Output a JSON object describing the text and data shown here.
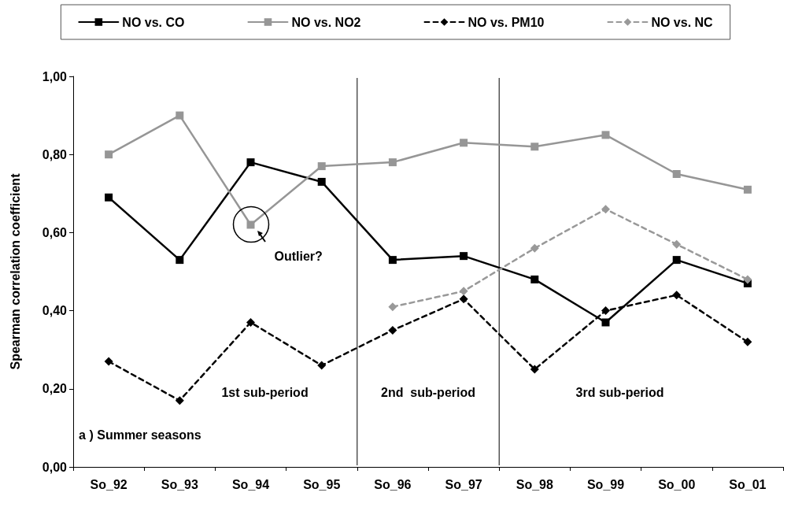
{
  "chart_data": {
    "type": "line",
    "ylabel": "Spearman correlation coefficient",
    "categories": [
      "So_92",
      "So_93",
      "So_94",
      "So_95",
      "So_96",
      "So_97",
      "So_98",
      "So_99",
      "So_00",
      "So_01"
    ],
    "series": [
      {
        "name": "NO vs. CO",
        "color": "#000000",
        "marker": "square",
        "line_style": "solid",
        "values": [
          0.69,
          0.53,
          0.78,
          0.73,
          0.53,
          0.54,
          0.48,
          0.37,
          0.53,
          0.47
        ]
      },
      {
        "name": "NO vs. NO2",
        "color": "#969696",
        "marker": "square",
        "line_style": "solid",
        "values": [
          0.8,
          0.9,
          0.62,
          0.77,
          0.78,
          0.83,
          0.82,
          0.85,
          0.75,
          0.71
        ]
      },
      {
        "name": "NO vs. PM10",
        "color": "#000000",
        "marker": "diamond",
        "line_style": "dashed",
        "values": [
          0.27,
          0.17,
          0.37,
          0.26,
          0.35,
          0.43,
          0.25,
          0.4,
          0.44,
          0.32
        ]
      },
      {
        "name": "NO vs. NC",
        "color": "#999999",
        "marker": "diamond",
        "line_style": "dashed",
        "values": [
          null,
          null,
          null,
          null,
          0.41,
          0.45,
          0.56,
          0.66,
          0.57,
          0.48
        ]
      }
    ],
    "ylim": [
      0,
      1
    ],
    "yticks": [
      {
        "value": 0,
        "label": "0,00"
      },
      {
        "value": 0.2,
        "label": "0,20"
      },
      {
        "value": 0.4,
        "label": "0,40"
      },
      {
        "value": 0.6,
        "label": "0,60"
      },
      {
        "value": 0.8,
        "label": "0,80"
      },
      {
        "value": 1,
        "label": "1,00"
      }
    ],
    "annotations": [
      {
        "text": "Outlier?",
        "x": "So_94",
        "y": 0.62
      },
      "1st sub-period",
      "2nd  sub-period",
      "3rd sub-period",
      "a ) Summer seasons"
    ],
    "grid": false,
    "legend": "top"
  }
}
